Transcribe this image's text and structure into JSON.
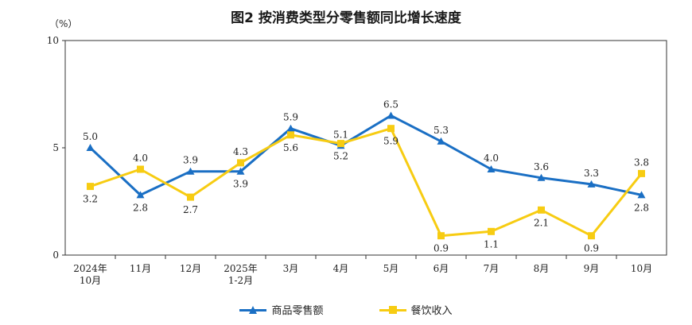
{
  "title": "图2 按消费类型分零售额同比增长速度",
  "chart_data": {
    "type": "line",
    "title": "图2 按消费类型分零售额同比增长速度",
    "ylabel": "（%）",
    "ylim": [
      0,
      10
    ],
    "yticks": [
      "0",
      "5",
      "10"
    ],
    "categories": [
      [
        "2024年",
        "10月"
      ],
      [
        "11月"
      ],
      [
        "12月"
      ],
      [
        "2025年",
        "1-2月"
      ],
      [
        "3月"
      ],
      [
        "4月"
      ],
      [
        "5月"
      ],
      [
        "6月"
      ],
      [
        "7月"
      ],
      [
        "8月"
      ],
      [
        "9月"
      ],
      [
        "10月"
      ]
    ],
    "series": [
      {
        "name": "商品零售额",
        "color": "#1a6fc4",
        "marker": "triangle",
        "values": [
          5.0,
          2.8,
          3.9,
          3.9,
          5.9,
          5.1,
          6.5,
          5.3,
          4.0,
          3.6,
          3.3,
          2.8
        ],
        "labels": [
          "5.0",
          "2.8",
          "3.9",
          "3.9",
          "5.9",
          "5.1",
          "6.5",
          "5.3",
          "4.0",
          "3.6",
          "3.3",
          "2.8"
        ]
      },
      {
        "name": "餐饮收入",
        "color": "#f7cc12",
        "marker": "square",
        "values": [
          3.2,
          4.0,
          2.7,
          4.3,
          5.6,
          5.2,
          5.9,
          0.9,
          1.1,
          2.1,
          0.9,
          3.8
        ],
        "labels": [
          "3.2",
          "4.0",
          "2.7",
          "4.3",
          "5.6",
          "5.2",
          "5.9",
          "0.9",
          "1.1",
          "2.1",
          "0.9",
          "3.8"
        ]
      }
    ],
    "legend_position": "bottom",
    "grid": false
  }
}
